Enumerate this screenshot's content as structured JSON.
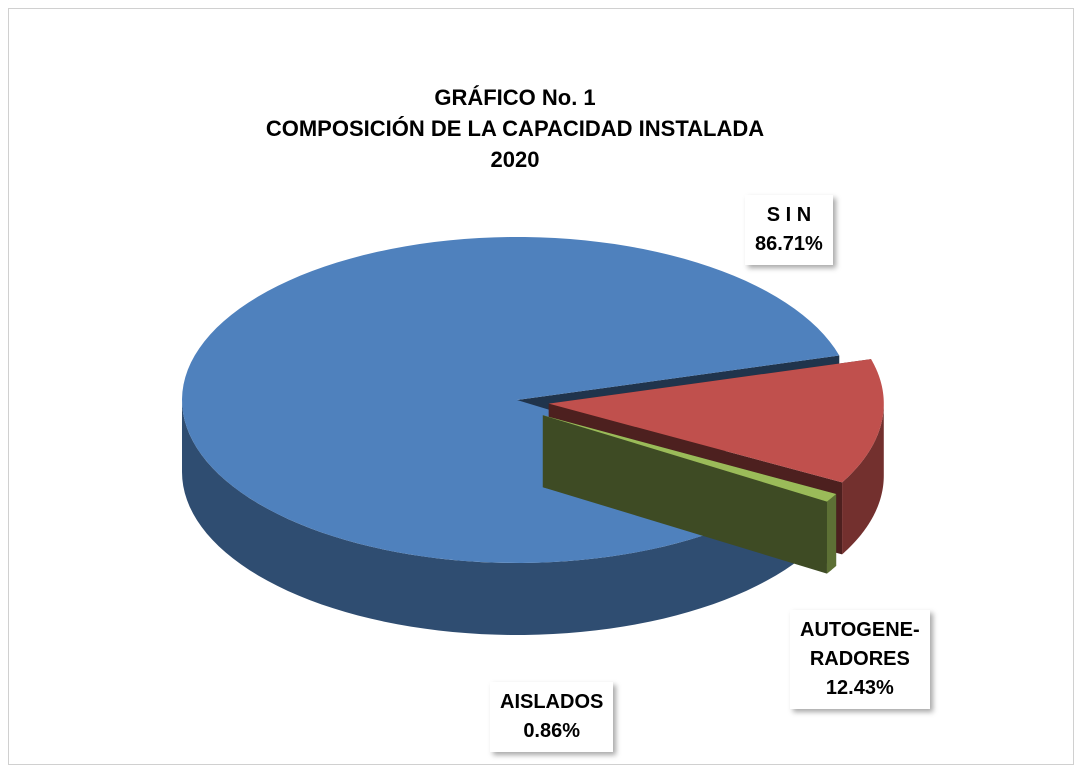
{
  "chart_data": {
    "type": "pie3d",
    "title": "GRÁFICO No. 1\nCOMPOSICIÓN DE LA CAPACIDAD INSTALADA\n2020",
    "categories": [
      "S I N",
      "AUTOGENE-\nRADORES",
      "AISLADOS"
    ],
    "values": [
      86.71,
      12.43,
      0.86
    ],
    "value_labels": [
      "86.71%",
      "12.43%",
      "0.86%"
    ],
    "colors": [
      "#4f81bd",
      "#c0504d",
      "#9bbb59"
    ]
  }
}
